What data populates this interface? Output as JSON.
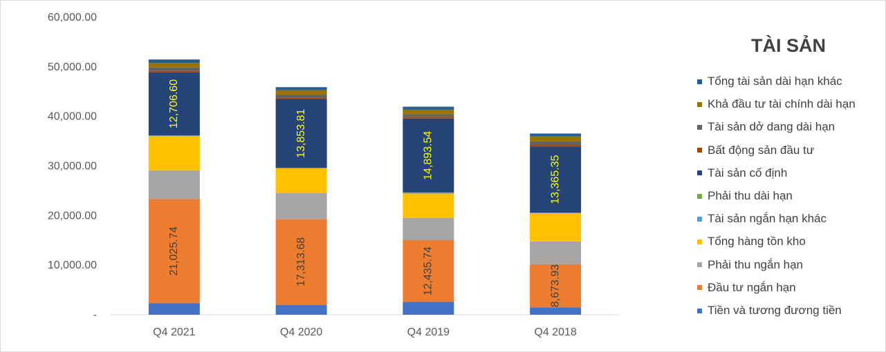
{
  "chart_data": {
    "type": "bar",
    "stacked": true,
    "categories": [
      "Q4 2021",
      "Q4 2020",
      "Q4 2019",
      "Q4 2018"
    ],
    "ylim": [
      0,
      60000
    ],
    "yticks": [
      0,
      10000,
      20000,
      30000,
      40000,
      50000,
      60000
    ],
    "ytick_labels": [
      "-",
      "10,000.00",
      "20,000.00",
      "30,000.00",
      "40,000.00",
      "50,000.00",
      "60,000.00"
    ],
    "grid": false,
    "legend_title": "TÀI SẢN",
    "legend_position": "right",
    "series": [
      {
        "name": "Tiền và tương đương tiền",
        "color": "#4472C4",
        "values": [
          2300,
          2000,
          2600,
          1500
        ],
        "labels": [
          "",
          "",
          "",
          ""
        ]
      },
      {
        "name": "Đầu tư ngắn hạn",
        "color": "#ED7D31",
        "values": [
          21025.74,
          17313.68,
          12435.74,
          8673.93
        ],
        "labels": [
          "21,025.74",
          "17,313.68",
          "12,435.74",
          "8,673.93"
        ]
      },
      {
        "name": "Phải thu ngắn hạn",
        "color": "#A5A5A5",
        "values": [
          5800,
          5200,
          4500,
          4600
        ],
        "labels": [
          "",
          "",
          "",
          ""
        ]
      },
      {
        "name": "Tổng hàng tồn kho",
        "color": "#FFC000",
        "values": [
          6900,
          5000,
          4900,
          5700
        ],
        "labels": [
          "",
          "",
          "",
          ""
        ]
      },
      {
        "name": "Tài sản ngắn hạn khác",
        "color": "#5B9BD5",
        "values": [
          100,
          80,
          80,
          60
        ],
        "labels": [
          "",
          "",
          "",
          ""
        ]
      },
      {
        "name": "Phải thu dài hạn",
        "color": "#70AD47",
        "values": [
          50,
          50,
          150,
          50
        ],
        "labels": [
          "",
          "",
          "",
          ""
        ]
      },
      {
        "name": "Tài sản cố định",
        "color": "#264478",
        "values": [
          12706.6,
          13853.81,
          14893.54,
          13365.35
        ],
        "labels": [
          "12,706.60",
          "13,853.81",
          "14,893.54",
          "13,365.35"
        ]
      },
      {
        "name": "Bất động sản đầu tư",
        "color": "#9E480E",
        "values": [
          300,
          300,
          300,
          300
        ],
        "labels": [
          "",
          "",
          "",
          ""
        ]
      },
      {
        "name": "Tài sản dở dang dài hạn",
        "color": "#636363",
        "values": [
          700,
          600,
          600,
          700
        ],
        "labels": [
          "",
          "",
          "",
          ""
        ]
      },
      {
        "name": "Khả đầu tư tài chính dài hạn",
        "color": "#997300",
        "values": [
          900,
          900,
          900,
          1000
        ],
        "labels": [
          "",
          "",
          "",
          ""
        ]
      },
      {
        "name": "Tổng tài sản dài hạn khác",
        "color": "#255E91",
        "values": [
          700,
          600,
          600,
          600
        ],
        "labels": [
          "",
          "",
          "",
          ""
        ]
      }
    ]
  }
}
